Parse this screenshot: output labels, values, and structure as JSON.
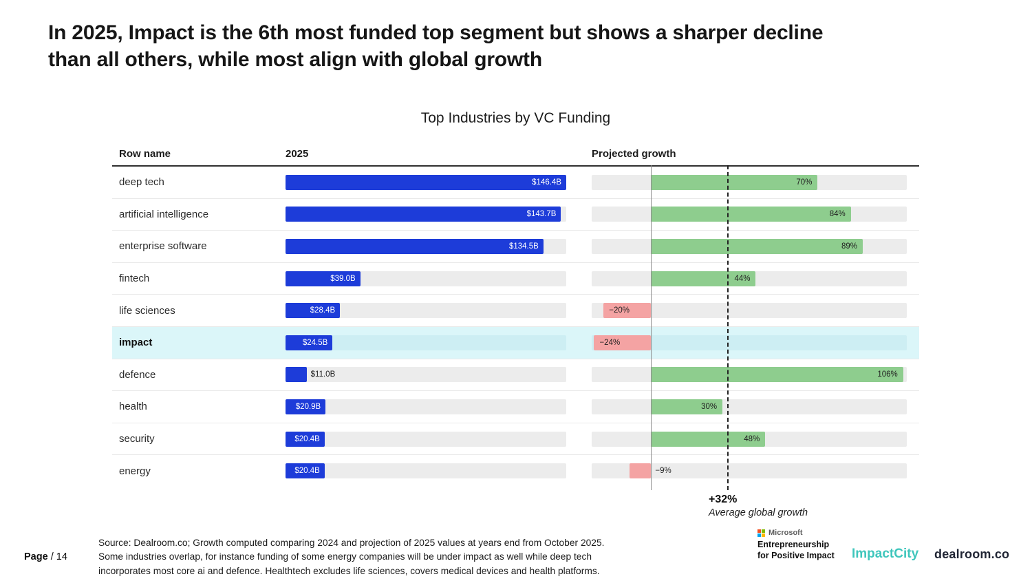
{
  "page": {
    "title": "In 2025, Impact is the 6th most funded top segment but shows a sharper decline\nthan all others, while most align with global growth"
  },
  "theme": {
    "title_color": "#161616",
    "impact_city": "#3fc6bc",
    "dealroom": "#202534",
    "microsoft_squares": [
      "#f25022",
      "#7fba00",
      "#00a4ef",
      "#ffb900"
    ]
  },
  "chart_data": {
    "type": "bar",
    "title": "Top Industries by VC Funding",
    "columns": [
      "Row name",
      "2025",
      "Projected growth"
    ],
    "funding_axis": {
      "min": 0,
      "max": 146.4,
      "unit": "USD billions"
    },
    "growth_axis": {
      "min": -25,
      "max": 107.5,
      "unit": "percent"
    },
    "average_growth": {
      "value": 32,
      "label": "+32%",
      "caption": "Average global growth"
    },
    "rows": [
      {
        "name": "deep tech",
        "funding_2025_b": 146.4,
        "funding_label": "$146.4B",
        "growth_pct": 70,
        "growth_label": "70%",
        "highlighted": false
      },
      {
        "name": "artificial intelligence",
        "funding_2025_b": 143.7,
        "funding_label": "$143.7B",
        "growth_pct": 84,
        "growth_label": "84%",
        "highlighted": false
      },
      {
        "name": "enterprise software",
        "funding_2025_b": 134.5,
        "funding_label": "$134.5B",
        "growth_pct": 89,
        "growth_label": "89%",
        "highlighted": false
      },
      {
        "name": "fintech",
        "funding_2025_b": 39.0,
        "funding_label": "$39.0B",
        "growth_pct": 44,
        "growth_label": "44%",
        "highlighted": false
      },
      {
        "name": "life sciences",
        "funding_2025_b": 28.4,
        "funding_label": "$28.4B",
        "growth_pct": -20,
        "growth_label": "−20%",
        "highlighted": false
      },
      {
        "name": "impact",
        "funding_2025_b": 24.5,
        "funding_label": "$24.5B",
        "growth_pct": -24,
        "growth_label": "−24%",
        "highlighted": true
      },
      {
        "name": "defence",
        "funding_2025_b": 11.0,
        "funding_label": "$11.0B",
        "growth_pct": 106,
        "growth_label": "106%",
        "highlighted": false
      },
      {
        "name": "health",
        "funding_2025_b": 20.9,
        "funding_label": "$20.9B",
        "growth_pct": 30,
        "growth_label": "30%",
        "highlighted": false
      },
      {
        "name": "security",
        "funding_2025_b": 20.4,
        "funding_label": "$20.4B",
        "growth_pct": 48,
        "growth_label": "48%",
        "highlighted": false
      },
      {
        "name": "energy",
        "funding_2025_b": 20.4,
        "funding_label": "$20.4B",
        "growth_pct": -9,
        "growth_label": "−9%",
        "highlighted": false
      }
    ],
    "colors": {
      "funding_bar": "#1d3cd9",
      "growth_positive": "#8ecd8e",
      "growth_negative": "#f4a3a3",
      "track": "#ececec",
      "highlight_row": "#dbf6f9",
      "highlight_track": "#cdeef3"
    }
  },
  "footer": {
    "page_label": "Page",
    "page_number": "/ 14",
    "source": "Source:  Dealroom.co; Growth computed comparing 2024 and projection of 2025 values at years end from October 2025.\nSome industries overlap, for instance funding of some energy companies will be under impact as well while deep tech\nincorporates most core ai and defence. Healthtech excludes life sciences, covers medical devices and health platforms."
  },
  "logos": {
    "microsoft": {
      "brand": "Microsoft",
      "line1": "Entrepreneurship",
      "line2": "for Positive Impact"
    },
    "impact_city": "ImpactCity",
    "dealroom": "dealroom.co"
  }
}
